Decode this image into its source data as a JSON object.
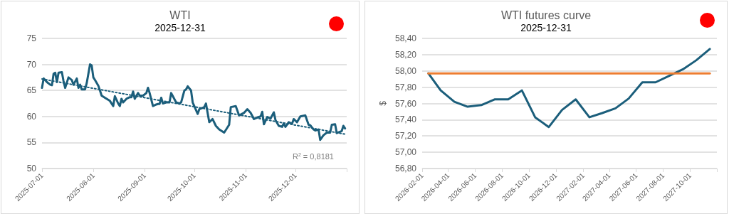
{
  "chart_data": [
    {
      "type": "line",
      "title": "WTI",
      "subtitle": "2025-12-31",
      "annotations": [
        "R$^{2}$ = 0,8181"
      ],
      "xlim": [
        "2025-07-01",
        "2026-01-01"
      ],
      "xticks": [
        {
          "value": "2025-07-01",
          "label": "2025-07-01"
        },
        {
          "value": "2025-08-01",
          "label": "2025-08-01"
        },
        {
          "value": "2025-09-01",
          "label": "2025-09-01"
        },
        {
          "value": "2025-10-01",
          "label": "2025-10-01"
        },
        {
          "value": "2025-11-01",
          "label": "2025-11-01"
        },
        {
          "value": "2025-12-01",
          "label": "2025-12-01"
        },
        {
          "value": "2026-01-01",
          "label": null
        }
      ],
      "ylim": [
        50,
        75
      ],
      "yticks": [
        50,
        55,
        60,
        65,
        70,
        75
      ],
      "grid": "y",
      "marker": "none",
      "series": [
        {
          "color": "#1b5e7b",
          "x": [
            "2025-07-01",
            "2025-07-02",
            "2025-07-04",
            "2025-07-06",
            "2025-07-07",
            "2025-07-08",
            "2025-07-09",
            "2025-07-10",
            "2025-07-11",
            "2025-07-13",
            "2025-07-14",
            "2025-07-15",
            "2025-07-17",
            "2025-07-19",
            "2025-07-20",
            "2025-07-22",
            "2025-07-23",
            "2025-07-24",
            "2025-07-25",
            "2025-07-27",
            "2025-07-28",
            "2025-07-30",
            "2025-07-31",
            "2025-08-01",
            "2025-08-02",
            "2025-08-04",
            "2025-08-05",
            "2025-08-06",
            "2025-08-08",
            "2025-08-11",
            "2025-08-13",
            "2025-08-14",
            "2025-08-16",
            "2025-08-17",
            "2025-08-18",
            "2025-08-19",
            "2025-08-21",
            "2025-08-23",
            "2025-08-24",
            "2025-08-25",
            "2025-08-26",
            "2025-08-28",
            "2025-08-29",
            "2025-08-31",
            "2025-09-02",
            "2025-09-03",
            "2025-09-04",
            "2025-09-06",
            "2025-09-08",
            "2025-09-09",
            "2025-09-10",
            "2025-09-11",
            "2025-09-12",
            "2025-09-14",
            "2025-09-16",
            "2025-09-17",
            "2025-09-18",
            "2025-09-20",
            "2025-09-22",
            "2025-09-23",
            "2025-09-25",
            "2025-09-26",
            "2025-09-27",
            "2025-09-29",
            "2025-09-30",
            "2025-10-03",
            "2025-10-04",
            "2025-10-07",
            "2025-10-08",
            "2025-10-10",
            "2025-10-12",
            "2025-10-14",
            "2025-10-16",
            "2025-10-19",
            "2025-10-22",
            "2025-10-23",
            "2025-10-26",
            "2025-10-28",
            "2025-10-31",
            "2025-11-02",
            "2025-11-04",
            "2025-11-06",
            "2025-11-08",
            "2025-11-10",
            "2025-11-11",
            "2025-11-12",
            "2025-11-14",
            "2025-11-16",
            "2025-11-18",
            "2025-11-19",
            "2025-11-21",
            "2025-11-23",
            "2025-11-24",
            "2025-11-25",
            "2025-11-27",
            "2025-11-29",
            "2025-11-30",
            "2025-12-02",
            "2025-12-04",
            "2025-12-07",
            "2025-12-09",
            "2025-12-10",
            "2025-12-12",
            "2025-12-13",
            "2025-12-15",
            "2025-12-16",
            "2025-12-18",
            "2025-12-20",
            "2025-12-22",
            "2025-12-23",
            "2025-12-25",
            "2025-12-26",
            "2025-12-29",
            "2025-12-30",
            "2025-12-31"
          ],
          "values": [
            65.5,
            67.3,
            66.6,
            66.1,
            66,
            68.2,
            68.4,
            66.6,
            68.4,
            68.5,
            66.8,
            65.5,
            67.5,
            67,
            66.1,
            67.3,
            65.5,
            66.1,
            65.2,
            65.2,
            66.4,
            70,
            69.8,
            67.5,
            67,
            65.9,
            65,
            64,
            63.6,
            63,
            62,
            63.9,
            62.5,
            62,
            63.4,
            62.7,
            63.4,
            63.7,
            63.7,
            64.8,
            63.4,
            64.5,
            64,
            64,
            64.5,
            65.5,
            64.5,
            62,
            62.3,
            62.4,
            62.4,
            63.6,
            62.5,
            62.7,
            62.7,
            64.5,
            63.9,
            62.7,
            62.5,
            62.7,
            65,
            65.2,
            65.8,
            65,
            62.7,
            60.5,
            61.4,
            61.8,
            62.5,
            58.9,
            59.5,
            58.2,
            57.5,
            56.9,
            58.4,
            61.8,
            62,
            60.2,
            60.7,
            61.4,
            60.7,
            59.5,
            59.8,
            60,
            60.9,
            58.5,
            59.9,
            59.6,
            60.8,
            59.3,
            58.2,
            58,
            58.7,
            58,
            58.9,
            58.6,
            59.5,
            58.9,
            60,
            60.2,
            58.4,
            58.3,
            57.5,
            57.3,
            57.5,
            55.5,
            56.4,
            56.9,
            56.9,
            58.4,
            58.5,
            56.8,
            57.2,
            58.2,
            57.7
          ]
        },
        {
          "type": "line",
          "color": "#1b5e7b",
          "line_style": "dotted",
          "x": [
            "2025-07-01",
            "2025-12-31"
          ],
          "values": [
            67.2,
            56.6
          ]
        }
      ]
    },
    {
      "type": "line",
      "title": "WTI futures curve",
      "subtitle": "2025-12-31",
      "ylabel": "$",
      "xlim": [
        "2026-02-01",
        "2027-12-01"
      ],
      "xticks": [
        {
          "value": "2026-02-01",
          "label": "2026-02-01"
        },
        {
          "value": "2026-04-01",
          "label": "2026-04-01"
        },
        {
          "value": "2026-06-01",
          "label": "2026-06-01"
        },
        {
          "value": "2026-08-01",
          "label": "2026-08-01"
        },
        {
          "value": "2026-10-01",
          "label": "2026-10-01"
        },
        {
          "value": "2026-12-01",
          "label": "2026-12-01"
        },
        {
          "value": "2027-02-01",
          "label": "2027-02-01"
        },
        {
          "value": "2027-04-01",
          "label": "2027-04-01"
        },
        {
          "value": "2027-06-01",
          "label": "2027-06-01"
        },
        {
          "value": "2027-08-01",
          "label": "2027-08-01"
        },
        {
          "value": "2027-10-01",
          "label": "2027-10-01"
        },
        {
          "value": "2027-12-01",
          "label": null
        }
      ],
      "ylim": [
        56.8,
        58.4
      ],
      "yticks": [
        {
          "value": 56.8,
          "label": "56,80"
        },
        {
          "value": 57.0,
          "label": "57,00"
        },
        {
          "value": 57.2,
          "label": "57,20"
        },
        {
          "value": 57.4,
          "label": "57,40"
        },
        {
          "value": 57.6,
          "label": "57,60"
        },
        {
          "value": 57.8,
          "label": "57,80"
        },
        {
          "value": 58.0,
          "label": "58,00"
        },
        {
          "value": 58.2,
          "label": "58,20"
        },
        {
          "value": 58.4,
          "label": "58,40"
        }
      ],
      "grid": "y",
      "marker": "none",
      "series": [
        {
          "color": "#1b5e7b",
          "x": [
            "2026-02-15",
            "2026-03-15",
            "2026-04-15",
            "2026-05-15",
            "2026-06-15",
            "2026-07-15",
            "2026-08-15",
            "2026-09-15",
            "2026-10-15",
            "2026-11-15",
            "2026-12-15",
            "2027-01-15",
            "2027-02-15",
            "2027-03-15",
            "2027-04-15",
            "2027-05-15",
            "2027-06-15",
            "2027-07-15",
            "2027-08-15",
            "2027-09-15",
            "2027-10-15",
            "2027-11-15"
          ],
          "values": [
            57.97,
            57.76,
            57.62,
            57.56,
            57.58,
            57.65,
            57.65,
            57.76,
            57.43,
            57.31,
            57.52,
            57.65,
            57.43,
            57.48,
            57.54,
            57.66,
            57.86,
            57.86,
            57.94,
            58.02,
            58.13,
            58.27
          ]
        },
        {
          "color": "#ed7d31",
          "x": [
            "2026-02-15",
            "2027-11-15"
          ],
          "values": [
            57.97,
            57.97
          ]
        }
      ]
    }
  ]
}
